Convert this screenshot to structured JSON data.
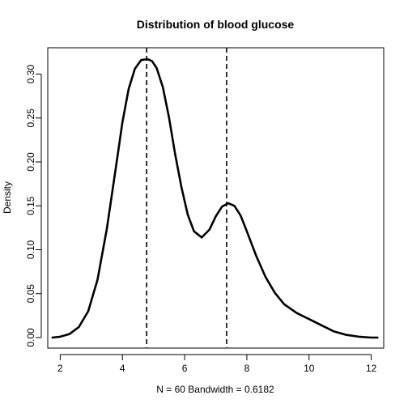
{
  "chart_data": {
    "type": "line",
    "title": "Distribution of blood glucose",
    "xlabel": "N = 60   Bandwidth = 0.6182",
    "ylabel": "Density",
    "xlim": [
      1.6,
      12.4
    ],
    "ylim": [
      -0.012,
      0.33
    ],
    "xticks": [
      "2",
      "4",
      "6",
      "8",
      "10",
      "12"
    ],
    "xtick_values": [
      2,
      4,
      6,
      8,
      10,
      12
    ],
    "yticks": [
      "0.00",
      "0.05",
      "0.10",
      "0.15",
      "0.20",
      "0.25",
      "0.30"
    ],
    "ytick_values": [
      0,
      0.05,
      0.1,
      0.15,
      0.2,
      0.25,
      0.3
    ],
    "grid": false,
    "series": [
      {
        "x": [
          1.75,
          2.0,
          2.3,
          2.6,
          2.9,
          3.2,
          3.5,
          3.8,
          4.0,
          4.2,
          4.4,
          4.6,
          4.8,
          4.95,
          5.1,
          5.3,
          5.5,
          5.7,
          5.9,
          6.1,
          6.3,
          6.55,
          6.8,
          7.0,
          7.2,
          7.4,
          7.6,
          7.8,
          8.0,
          8.3,
          8.6,
          8.9,
          9.2,
          9.6,
          10.0,
          10.4,
          10.8,
          11.2,
          11.6,
          12.0,
          12.2
        ],
        "y": [
          0.0,
          0.001,
          0.004,
          0.012,
          0.03,
          0.066,
          0.124,
          0.196,
          0.245,
          0.283,
          0.306,
          0.316,
          0.317,
          0.315,
          0.307,
          0.285,
          0.25,
          0.208,
          0.171,
          0.14,
          0.121,
          0.114,
          0.123,
          0.138,
          0.149,
          0.153,
          0.15,
          0.139,
          0.121,
          0.093,
          0.069,
          0.051,
          0.038,
          0.028,
          0.021,
          0.014,
          0.007,
          0.003,
          0.001,
          0.0,
          0.0
        ]
      }
    ],
    "vlines": [
      4.78,
      7.35
    ]
  }
}
